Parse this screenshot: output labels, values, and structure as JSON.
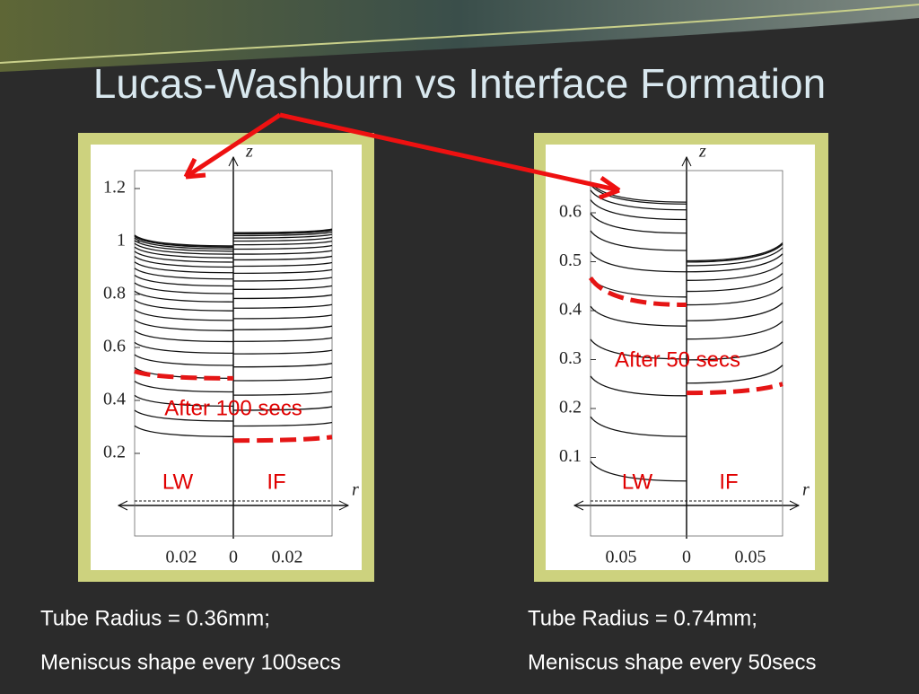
{
  "title": "Lucas-Washburn vs Interface Formation",
  "panels": [
    {
      "z_label": "z",
      "r_label": "r",
      "yticks": [
        "1.2",
        "1",
        "0.8",
        "0.6",
        "0.4",
        "0.2"
      ],
      "xticks": [
        "0.02",
        "0",
        "0.02"
      ],
      "annotation": "After 100 secs",
      "left_label": "LW",
      "right_label": "IF",
      "caption": [
        "Tube Radius = 0.36mm;",
        "Meniscus shape every  100secs"
      ]
    },
    {
      "z_label": "z",
      "r_label": "r",
      "yticks": [
        "0.6",
        "0.5",
        "0.4",
        "0.3",
        "0.2",
        "0.1"
      ],
      "xticks": [
        "0.05",
        "0",
        "0.05"
      ],
      "annotation": "After 50 secs",
      "left_label": "LW",
      "right_label": "IF",
      "caption": [
        "Tube Radius = 0.74mm;",
        "Meniscus shape every  50secs"
      ]
    }
  ]
}
